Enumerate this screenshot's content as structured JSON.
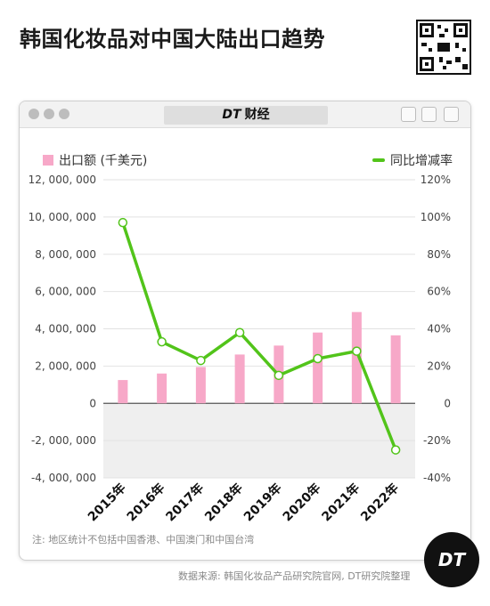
{
  "header": {
    "title": "韩国化妆品对中国大陆出口趋势"
  },
  "card": {
    "brand_prefix": "DT",
    "brand_suffix": "财经"
  },
  "legend": {
    "bar_label": "出口额 (千美元)",
    "line_label": "同比增减率"
  },
  "colors": {
    "bar": "#f7a8c8",
    "line": "#52c41a",
    "negative_band": "#efefef"
  },
  "chart_data": {
    "type": "bar",
    "categories": [
      "2015年",
      "2016年",
      "2017年",
      "2018年",
      "2019年",
      "2020年",
      "2021年",
      "2022年"
    ],
    "series": [
      {
        "name": "出口额 (千美元)",
        "type": "bar",
        "axis": "left",
        "values": [
          1250000,
          1600000,
          1950000,
          2620000,
          3100000,
          3800000,
          4900000,
          3650000
        ]
      },
      {
        "name": "同比增减率",
        "type": "line",
        "axis": "right",
        "values": [
          97,
          33,
          23,
          38,
          15,
          24,
          28,
          -25
        ]
      }
    ],
    "left_axis": {
      "ylim": [
        -4000000,
        12000000
      ],
      "ticks": [
        12000000,
        10000000,
        8000000,
        6000000,
        4000000,
        2000000,
        0,
        -2000000,
        -4000000
      ],
      "tick_labels": [
        "12, 000, 000",
        "10, 000, 000",
        "8, 000, 000",
        "6, 000, 000",
        "4, 000, 000",
        "2, 000, 000",
        "0",
        "-2, 000, 000",
        "-4, 000, 000"
      ]
    },
    "right_axis": {
      "ylim": [
        -40,
        120
      ],
      "ticks": [
        120,
        100,
        80,
        60,
        40,
        20,
        0,
        -20,
        -40
      ],
      "tick_labels": [
        "120%",
        "100%",
        "80%",
        "60%",
        "40%",
        "20%",
        "0",
        "-20%",
        "-40%"
      ]
    },
    "legend_position": "top"
  },
  "footer": {
    "note": "注: 地区统计不包括中国香港、中国澳门和中国台湾",
    "source": "数据来源: 韩国化妆品产品研究院官网, DT研究院整理",
    "logo": "DT"
  }
}
